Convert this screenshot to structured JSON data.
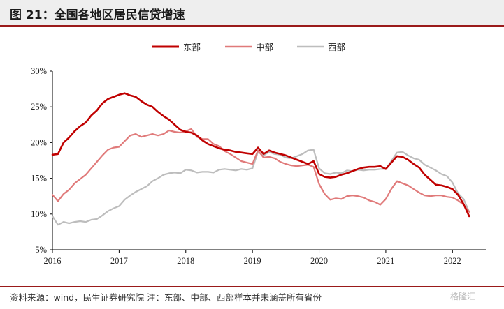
{
  "header": {
    "title": "图 21：全国各地区居民信贷增速"
  },
  "footer": {
    "source": "资料来源：wind，民生证券研究院 注：东部、中部、西部样本并未涵盖所有省份",
    "watermark": "格隆汇"
  },
  "chart_data": {
    "type": "line",
    "title": "",
    "xlabel": "",
    "ylabel": "",
    "x_ticks": [
      "2016",
      "2017",
      "2018",
      "2019",
      "2020",
      "2021",
      "2022"
    ],
    "y_ticks": [
      "5%",
      "10%",
      "15%",
      "20%",
      "25%",
      "30%"
    ],
    "xlim": [
      2016.0,
      2022.5
    ],
    "ylim": [
      5,
      30
    ],
    "grid": false,
    "legend_position": "top-center",
    "series": [
      {
        "name": "东部",
        "color": "#c00000",
        "x": [
          2016.0,
          2016.083,
          2016.167,
          2016.25,
          2016.333,
          2016.417,
          2016.5,
          2016.583,
          2016.667,
          2016.75,
          2016.833,
          2016.917,
          2017.0,
          2017.083,
          2017.167,
          2017.25,
          2017.333,
          2017.417,
          2017.5,
          2017.583,
          2017.667,
          2017.75,
          2017.833,
          2017.917,
          2018.0,
          2018.083,
          2018.167,
          2018.25,
          2018.333,
          2018.417,
          2018.5,
          2018.583,
          2018.667,
          2018.75,
          2018.833,
          2018.917,
          2019.0,
          2019.083,
          2019.167,
          2019.25,
          2019.333,
          2019.417,
          2019.5,
          2019.583,
          2019.667,
          2019.75,
          2019.833,
          2019.917,
          2020.0,
          2020.083,
          2020.167,
          2020.25,
          2020.333,
          2020.417,
          2020.5,
          2020.583,
          2020.667,
          2020.75,
          2020.833,
          2020.917,
          2021.0,
          2021.083,
          2021.167,
          2021.25,
          2021.333,
          2021.417,
          2021.5,
          2021.583,
          2021.667,
          2021.75,
          2021.833,
          2021.917,
          2022.0,
          2022.083,
          2022.167,
          2022.25
        ],
        "values": [
          18.3,
          18.4,
          20.0,
          20.7,
          21.6,
          22.3,
          22.8,
          23.8,
          24.5,
          25.5,
          26.1,
          26.4,
          26.7,
          26.9,
          26.6,
          26.4,
          25.8,
          25.3,
          25.0,
          24.3,
          23.7,
          23.2,
          22.5,
          21.8,
          21.5,
          21.4,
          21.0,
          20.3,
          19.8,
          19.5,
          19.2,
          19.0,
          18.9,
          18.7,
          18.6,
          18.5,
          18.4,
          19.3,
          18.4,
          18.9,
          18.6,
          18.4,
          18.2,
          17.9,
          17.6,
          17.3,
          17.0,
          17.4,
          15.6,
          15.2,
          15.1,
          15.2,
          15.5,
          15.7,
          16.0,
          16.3,
          16.5,
          16.6,
          16.6,
          16.7,
          16.3,
          17.2,
          18.1,
          18.0,
          17.6,
          17.0,
          16.5,
          15.5,
          14.8,
          14.1,
          14.0,
          13.8,
          13.5,
          12.7,
          11.4,
          9.7
        ]
      },
      {
        "name": "中部",
        "color": "#e07a7a",
        "x": [
          2016.0,
          2016.083,
          2016.167,
          2016.25,
          2016.333,
          2016.417,
          2016.5,
          2016.583,
          2016.667,
          2016.75,
          2016.833,
          2016.917,
          2017.0,
          2017.083,
          2017.167,
          2017.25,
          2017.333,
          2017.417,
          2017.5,
          2017.583,
          2017.667,
          2017.75,
          2017.833,
          2017.917,
          2018.0,
          2018.083,
          2018.167,
          2018.25,
          2018.333,
          2018.417,
          2018.5,
          2018.583,
          2018.667,
          2018.75,
          2018.833,
          2018.917,
          2019.0,
          2019.083,
          2019.167,
          2019.25,
          2019.333,
          2019.417,
          2019.5,
          2019.583,
          2019.667,
          2019.75,
          2019.833,
          2019.917,
          2020.0,
          2020.083,
          2020.167,
          2020.25,
          2020.333,
          2020.417,
          2020.5,
          2020.583,
          2020.667,
          2020.75,
          2020.833,
          2020.917,
          2021.0,
          2021.083,
          2021.167,
          2021.25,
          2021.333,
          2021.417,
          2021.5,
          2021.583,
          2021.667,
          2021.75,
          2021.833,
          2021.917,
          2022.0,
          2022.083,
          2022.167,
          2022.25
        ],
        "values": [
          12.7,
          11.8,
          12.8,
          13.4,
          14.3,
          14.9,
          15.5,
          16.4,
          17.3,
          18.2,
          19.0,
          19.3,
          19.4,
          20.2,
          21.0,
          21.2,
          20.8,
          21.0,
          21.2,
          21.0,
          21.2,
          21.7,
          21.5,
          21.4,
          21.6,
          21.9,
          20.8,
          20.5,
          20.5,
          19.8,
          19.5,
          18.8,
          18.4,
          17.9,
          17.4,
          17.2,
          17.0,
          18.9,
          17.9,
          18.0,
          17.8,
          17.3,
          17.0,
          16.8,
          16.7,
          16.8,
          16.9,
          16.6,
          14.2,
          12.8,
          12.0,
          12.2,
          12.1,
          12.5,
          12.6,
          12.5,
          12.3,
          11.9,
          11.7,
          11.3,
          12.1,
          13.5,
          14.6,
          14.3,
          14.0,
          13.5,
          13.0,
          12.6,
          12.5,
          12.6,
          12.6,
          12.4,
          12.3,
          11.9,
          11.3,
          10.3
        ]
      },
      {
        "name": "西部",
        "color": "#bdbdbd",
        "x": [
          2016.0,
          2016.083,
          2016.167,
          2016.25,
          2016.333,
          2016.417,
          2016.5,
          2016.583,
          2016.667,
          2016.75,
          2016.833,
          2016.917,
          2017.0,
          2017.083,
          2017.167,
          2017.25,
          2017.333,
          2017.417,
          2017.5,
          2017.583,
          2017.667,
          2017.75,
          2017.833,
          2017.917,
          2018.0,
          2018.083,
          2018.167,
          2018.25,
          2018.333,
          2018.417,
          2018.5,
          2018.583,
          2018.667,
          2018.75,
          2018.833,
          2018.917,
          2019.0,
          2019.083,
          2019.167,
          2019.25,
          2019.333,
          2019.417,
          2019.5,
          2019.583,
          2019.667,
          2019.75,
          2019.833,
          2019.917,
          2020.0,
          2020.083,
          2020.167,
          2020.25,
          2020.333,
          2020.417,
          2020.5,
          2020.583,
          2020.667,
          2020.75,
          2020.833,
          2020.917,
          2021.0,
          2021.083,
          2021.167,
          2021.25,
          2021.333,
          2021.417,
          2021.5,
          2021.583,
          2021.667,
          2021.75,
          2021.833,
          2021.917,
          2022.0,
          2022.083,
          2022.167,
          2022.25
        ],
        "values": [
          9.7,
          8.5,
          8.9,
          8.7,
          8.9,
          9.0,
          8.9,
          9.2,
          9.3,
          9.8,
          10.4,
          10.8,
          11.1,
          12.0,
          12.6,
          13.1,
          13.5,
          13.9,
          14.6,
          15.0,
          15.5,
          15.7,
          15.8,
          15.7,
          16.2,
          16.1,
          15.8,
          15.9,
          15.9,
          15.8,
          16.2,
          16.3,
          16.2,
          16.1,
          16.3,
          16.2,
          16.4,
          18.7,
          18.2,
          18.7,
          18.4,
          18.3,
          17.9,
          17.8,
          18.1,
          18.4,
          18.9,
          19.0,
          16.4,
          15.7,
          15.6,
          15.8,
          15.7,
          16.1,
          16.0,
          16.2,
          16.1,
          16.2,
          16.2,
          16.3,
          16.3,
          17.4,
          18.6,
          18.7,
          18.2,
          17.8,
          17.6,
          16.9,
          16.5,
          16.1,
          15.6,
          15.3,
          14.4,
          12.9,
          12.1,
          10.3
        ]
      }
    ]
  }
}
